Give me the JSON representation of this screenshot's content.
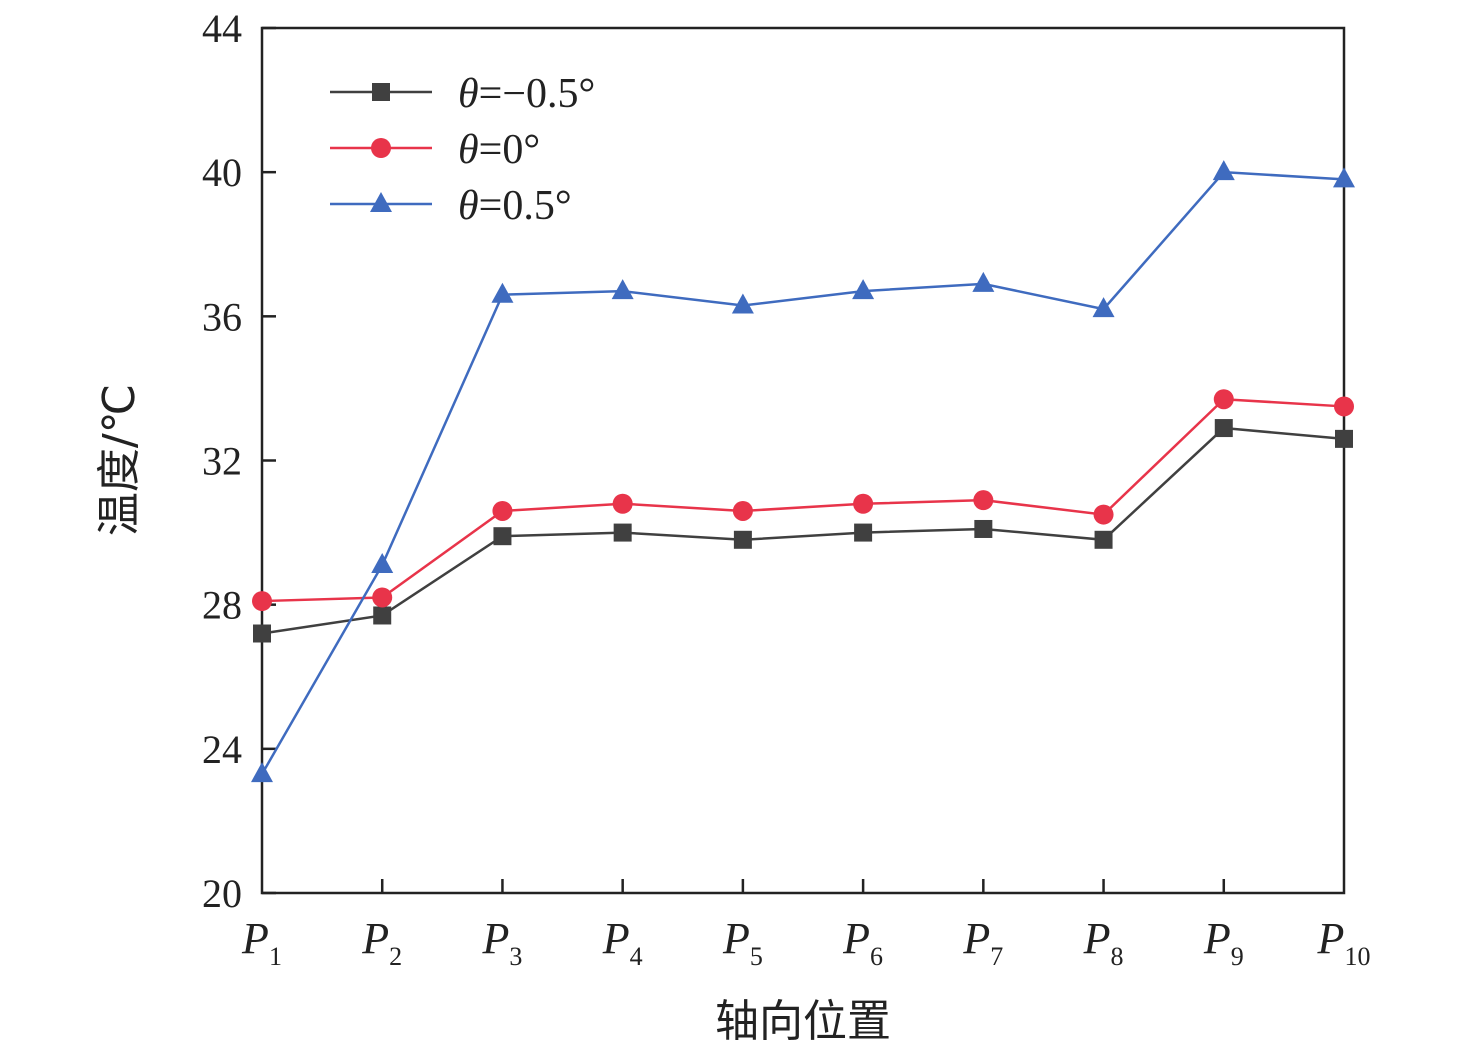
{
  "chart_data": {
    "type": "line",
    "title": "",
    "xlabel": "轴向位置",
    "ylabel": "温度/℃",
    "ylim": [
      20,
      44
    ],
    "yticks": [
      20,
      24,
      28,
      32,
      36,
      40,
      44
    ],
    "grid": false,
    "legend_position": "top-left",
    "categories": [
      {
        "base": "P",
        "sub": "1"
      },
      {
        "base": "P",
        "sub": "2"
      },
      {
        "base": "P",
        "sub": "3"
      },
      {
        "base": "P",
        "sub": "4"
      },
      {
        "base": "P",
        "sub": "5"
      },
      {
        "base": "P",
        "sub": "6"
      },
      {
        "base": "P",
        "sub": "7"
      },
      {
        "base": "P",
        "sub": "8"
      },
      {
        "base": "P",
        "sub": "9"
      },
      {
        "base": "P",
        "sub": "10"
      }
    ],
    "series": [
      {
        "name": "θ=−0.5°",
        "legend_symbol": "θ",
        "legend_rest": "=−0.5°",
        "color": "#404040",
        "marker": "square",
        "values": [
          27.2,
          27.7,
          29.9,
          30.0,
          29.8,
          30.0,
          30.1,
          29.8,
          32.9,
          32.6
        ]
      },
      {
        "name": "θ=0°",
        "legend_symbol": "θ",
        "legend_rest": "=0°",
        "color": "#e8344a",
        "marker": "circle",
        "values": [
          28.1,
          28.2,
          30.6,
          30.8,
          30.6,
          30.8,
          30.9,
          30.5,
          33.7,
          33.5
        ]
      },
      {
        "name": "θ=0.5°",
        "legend_symbol": "θ",
        "legend_rest": "=0.5°",
        "color": "#3f6bbf",
        "marker": "triangle",
        "values": [
          23.3,
          29.1,
          36.6,
          36.7,
          36.3,
          36.7,
          36.9,
          36.2,
          40.0,
          39.8
        ]
      }
    ]
  }
}
